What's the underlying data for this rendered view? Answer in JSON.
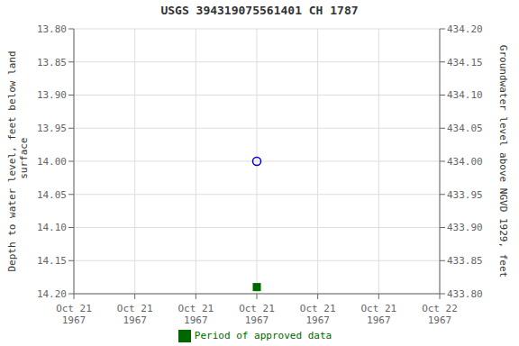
{
  "chart_data": {
    "type": "scatter",
    "title": "USGS 394319075561401 CH  1787",
    "ylabel": "Depth to water level, feet below land\n surface",
    "y2label": "Groundwater level above NGVD 1929, feet",
    "categories": [
      "Oct 21\n1967",
      "Oct 21\n1967",
      "Oct 21\n1967",
      "Oct 21\n1967",
      "Oct 21\n1967",
      "Oct 21\n1967",
      "Oct 22\n1967"
    ],
    "series": [
      {
        "color": "#0000cc",
        "marker": "open_circle",
        "values": [
          null,
          null,
          null,
          14.0,
          null,
          null,
          null
        ]
      },
      {
        "name": "Period of approved data",
        "color": "#006600",
        "marker": "square",
        "values": [
          null,
          null,
          null,
          14.19,
          null,
          null,
          null
        ]
      }
    ],
    "ylim": [
      14.2,
      13.8
    ],
    "yticks": [
      {
        "value": 13.8,
        "label": "13.80"
      },
      {
        "value": 13.85,
        "label": "13.85"
      },
      {
        "value": 13.9,
        "label": "13.90"
      },
      {
        "value": 13.95,
        "label": "13.95"
      },
      {
        "value": 14.0,
        "label": "14.00"
      },
      {
        "value": 14.05,
        "label": "14.05"
      },
      {
        "value": 14.1,
        "label": "14.10"
      },
      {
        "value": 14.15,
        "label": "14.15"
      },
      {
        "value": 14.2,
        "label": "14.20"
      }
    ],
    "y2lim": [
      433.8,
      434.2
    ],
    "y2ticks": [
      {
        "value": 434.2,
        "label": "434.20"
      },
      {
        "value": 434.15,
        "label": "434.15"
      },
      {
        "value": 434.1,
        "label": "434.10"
      },
      {
        "value": 434.05,
        "label": "434.05"
      },
      {
        "value": 434.0,
        "label": "434.00"
      },
      {
        "value": 433.95,
        "label": "433.95"
      },
      {
        "value": 433.9,
        "label": "433.90"
      },
      {
        "value": 433.85,
        "label": "433.85"
      },
      {
        "value": 433.8,
        "label": "433.80"
      }
    ],
    "grid": true,
    "legend": "bottom"
  }
}
